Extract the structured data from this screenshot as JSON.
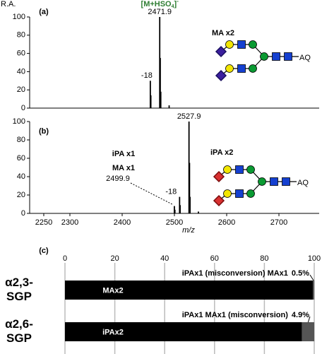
{
  "chart_data": [
    {
      "type": "stem",
      "panel": "(a)",
      "y_label": "R.A.",
      "ion_label": [
        "[M+HSO",
        "4",
        "]",
        "-"
      ],
      "ion_color": "#2e7d32",
      "glycan_label": "MA x2",
      "glycan_tail": "AQ",
      "color": "#000000",
      "xlim": [
        2223,
        2777
      ],
      "ylim": [
        0,
        100
      ],
      "yticks": [
        0,
        20,
        40,
        60,
        80,
        100
      ],
      "x": [
        2453.9,
        2454.9,
        2471.9,
        2472.9,
        2473.9,
        2489.9
      ],
      "values": [
        30,
        14,
        100,
        55,
        18,
        3
      ],
      "peak_labels": [
        "-18",
        null,
        "2471.9",
        null,
        null,
        null
      ]
    },
    {
      "type": "stem",
      "panel": "(b)",
      "x_label": "m/z",
      "annotation_lines": [
        "iPA x1",
        "MA x1"
      ],
      "glycan_label": "iPA x2",
      "glycan_tail": "AQ",
      "color": "#000000",
      "xlim": [
        2223,
        2777
      ],
      "xticks": [
        2250,
        2300,
        2400,
        2500,
        2600,
        2700
      ],
      "ylim": [
        0,
        100
      ],
      "yticks": [
        0,
        20,
        40,
        60,
        80,
        100
      ],
      "x": [
        2499.9,
        2500.9,
        2509.9,
        2510.9,
        2527.9,
        2528.9,
        2529.9,
        2545.9
      ],
      "values": [
        8,
        4,
        18,
        9,
        100,
        55,
        18,
        2
      ],
      "peak_labels": [
        "2499.9",
        null,
        "-18",
        null,
        "2527.9",
        null,
        null,
        null
      ]
    },
    {
      "type": "stacked_bar",
      "panel": "(c)",
      "categories": [
        "α2,3-SGP",
        "α2,6-SGP"
      ],
      "xlim": [
        0,
        100
      ],
      "xticks": [
        0,
        20,
        40,
        60,
        80,
        100
      ],
      "grid": true,
      "series": [
        {
          "labels": [
            "MAx2",
            "iPAx2"
          ],
          "color": "#000000",
          "values": [
            99.5,
            95.1
          ]
        },
        {
          "labels": [
            "iPAx1 (misconversion) MAx1",
            "iPAx1 MAx1 (misconversion)"
          ],
          "color": "#555555",
          "values": [
            0.5,
            4.9
          ],
          "value_labels": [
            "0.5%",
            "4.9%"
          ]
        }
      ]
    }
  ]
}
